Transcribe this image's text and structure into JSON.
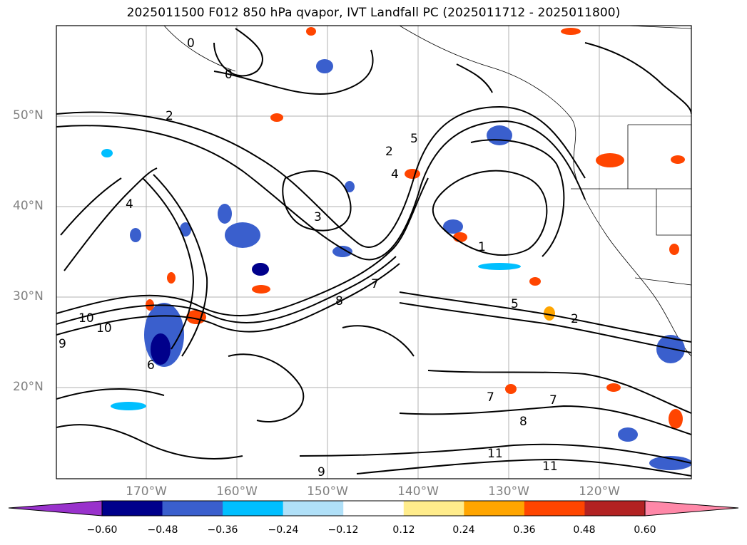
{
  "title": "2025011500 F012 850 hPa qvapor, IVT Landfall PC (2025011712 - 2025011800)",
  "map": {
    "lat_labels": [
      "50°N",
      "40°N",
      "30°N",
      "20°N"
    ],
    "lon_labels": [
      "170°W",
      "160°W",
      "150°W",
      "140°W",
      "130°W",
      "120°W"
    ],
    "contour_labels": [
      "0",
      "0",
      "1",
      "2",
      "2",
      "2",
      "3",
      "4",
      "4",
      "5",
      "5",
      "6",
      "7",
      "7",
      "7",
      "8",
      "8",
      "9",
      "9",
      "10",
      "10",
      "11",
      "11"
    ],
    "fill_colors": {
      "neg_strong": "#00008b",
      "neg_mid": "#3a5fcd",
      "neg_weak": "#00bfff",
      "neg_light": "#b0e0f8",
      "pos_light": "#ffec8b",
      "pos_weak": "#ffa500",
      "pos_mid": "#ff4500",
      "pos_strong": "#b22222"
    }
  },
  "colorbar": {
    "ticks": [
      "−0.60",
      "−0.48",
      "−0.36",
      "−0.24",
      "−0.12",
      "0.12",
      "0.24",
      "0.36",
      "0.48",
      "0.60"
    ],
    "colors": [
      "#9932cc",
      "#00008b",
      "#3a5fcd",
      "#00bfff",
      "#b0e0f8",
      "#ffffff",
      "#ffec8b",
      "#ffa500",
      "#ff4500",
      "#b22222",
      "#ff88a8"
    ]
  }
}
